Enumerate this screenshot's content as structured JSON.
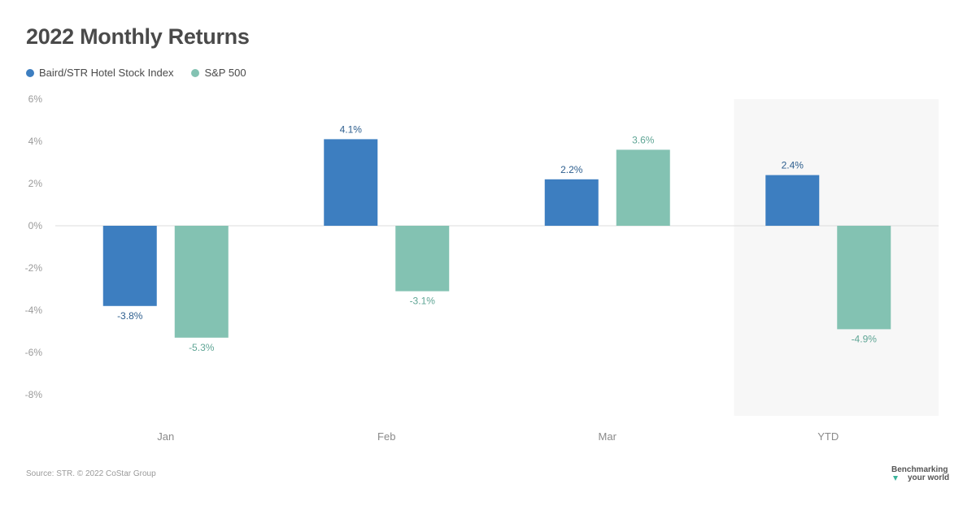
{
  "title": "2022 Monthly Returns",
  "source": "Source: STR. © 2022 CoStar Group",
  "brand": {
    "line1": "Benchmarking",
    "line2": "your world"
  },
  "colors": {
    "series1": "#3d7ec0",
    "series2": "#83c2b2",
    "label1": "#2d5e8e",
    "label2": "#5fa595",
    "highlight": "#f7f7f7"
  },
  "chart_data": {
    "type": "bar",
    "categories": [
      "Jan",
      "Feb",
      "Mar",
      "YTD"
    ],
    "series": [
      {
        "name": "Baird/STR Hotel Stock Index",
        "values": [
          -3.8,
          4.1,
          2.2,
          2.4
        ],
        "labels": [
          "-3.8%",
          "4.1%",
          "2.2%",
          "2.4%"
        ]
      },
      {
        "name": "S&P 500",
        "values": [
          -5.3,
          -3.1,
          3.6,
          -4.9
        ],
        "labels": [
          "-5.3%",
          "-3.1%",
          "3.6%",
          "-4.9%"
        ]
      }
    ],
    "yticks": [
      "6%",
      "4%",
      "2%",
      "0%",
      "-2%",
      "-4%",
      "-6%",
      "-8%"
    ],
    "ytick_values": [
      6,
      4,
      2,
      0,
      -2,
      -4,
      -6,
      -8
    ],
    "ylim": [
      -9,
      6
    ],
    "highlighted_category": "YTD",
    "grid": false,
    "legend_position": "top-left"
  }
}
